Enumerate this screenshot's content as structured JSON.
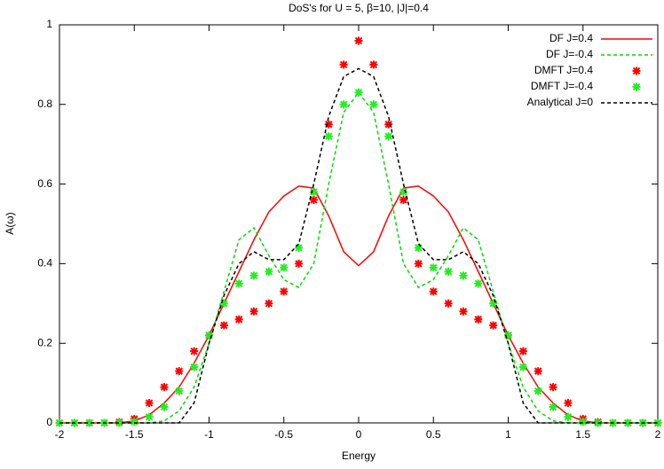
{
  "chart_data": {
    "type": "line",
    "title": "DoS's for U = 5, β=10, |J|=0.4",
    "xlabel": "Energy",
    "ylabel": "A(ω)",
    "x": [
      -2,
      -1.9,
      -1.8,
      -1.7,
      -1.6,
      -1.5,
      -1.4,
      -1.3,
      -1.2,
      -1.1,
      -1,
      -0.9,
      -0.8,
      -0.7,
      -0.6,
      -0.5,
      -0.4,
      -0.3,
      -0.2,
      -0.1,
      0,
      0.1,
      0.2,
      0.3,
      0.4,
      0.5,
      0.6,
      0.7,
      0.8,
      0.9,
      1,
      1.1,
      1.2,
      1.3,
      1.4,
      1.5,
      1.6,
      1.7,
      1.8,
      1.9,
      2
    ],
    "series": [
      {
        "name": "DF J=0.4",
        "color": "#ff0000",
        "style": "solid",
        "values": [
          0,
          0,
          0,
          0,
          0,
          0.005,
          0.02,
          0.05,
          0.09,
          0.15,
          0.22,
          0.3,
          0.38,
          0.46,
          0.53,
          0.57,
          0.595,
          0.59,
          0.52,
          0.43,
          0.395,
          0.43,
          0.52,
          0.59,
          0.595,
          0.57,
          0.53,
          0.46,
          0.38,
          0.3,
          0.22,
          0.15,
          0.09,
          0.05,
          0.02,
          0.005,
          0,
          0,
          0,
          0,
          0
        ]
      },
      {
        "name": "DF J=-0.4",
        "color": "#00dd00",
        "style": "dashed",
        "values": [
          0,
          0,
          0,
          0,
          0,
          0,
          0,
          0.005,
          0.03,
          0.09,
          0.2,
          0.33,
          0.46,
          0.49,
          0.42,
          0.36,
          0.34,
          0.4,
          0.6,
          0.78,
          0.83,
          0.78,
          0.6,
          0.4,
          0.34,
          0.36,
          0.42,
          0.49,
          0.46,
          0.33,
          0.2,
          0.09,
          0.03,
          0.005,
          0,
          0,
          0,
          0,
          0,
          0,
          0
        ]
      },
      {
        "name": "DMFT J=0.4",
        "color": "#ff0000",
        "style": "points",
        "values": [
          0,
          0,
          0,
          0,
          0.002,
          0.01,
          0.05,
          0.09,
          0.13,
          0.18,
          0.22,
          0.245,
          0.26,
          0.28,
          0.3,
          0.33,
          0.4,
          0.56,
          0.75,
          0.9,
          0.96,
          0.9,
          0.75,
          0.56,
          0.4,
          0.33,
          0.3,
          0.28,
          0.26,
          0.245,
          0.22,
          0.18,
          0.13,
          0.09,
          0.05,
          0.01,
          0.002,
          0,
          0,
          0,
          0
        ]
      },
      {
        "name": "DMFT J=-0.4",
        "color": "#22ee22",
        "style": "points",
        "values": [
          0,
          0,
          0,
          0,
          0,
          0.003,
          0.015,
          0.04,
          0.08,
          0.14,
          0.22,
          0.3,
          0.35,
          0.37,
          0.38,
          0.39,
          0.44,
          0.58,
          0.72,
          0.8,
          0.83,
          0.8,
          0.72,
          0.58,
          0.44,
          0.39,
          0.38,
          0.37,
          0.35,
          0.3,
          0.22,
          0.14,
          0.08,
          0.04,
          0.015,
          0.003,
          0,
          0,
          0,
          0,
          0
        ]
      },
      {
        "name": "Analytical J=0",
        "color": "#000000",
        "style": "dashed",
        "values": [
          0,
          0,
          0,
          0,
          0,
          0,
          0,
          0,
          0,
          0.05,
          0.2,
          0.32,
          0.4,
          0.43,
          0.41,
          0.41,
          0.45,
          0.6,
          0.77,
          0.87,
          0.89,
          0.87,
          0.77,
          0.6,
          0.45,
          0.41,
          0.41,
          0.43,
          0.4,
          0.32,
          0.2,
          0.05,
          0,
          0,
          0,
          0,
          0,
          0,
          0,
          0,
          0
        ]
      }
    ],
    "xlim": [
      -2,
      2
    ],
    "ylim": [
      0,
      1
    ],
    "xticks": [
      -2,
      -1.5,
      -1,
      -0.5,
      0,
      0.5,
      1,
      1.5,
      2
    ],
    "yticks": [
      0,
      0.2,
      0.4,
      0.6,
      0.8,
      1
    ],
    "grid": false,
    "legend": "top-right"
  }
}
